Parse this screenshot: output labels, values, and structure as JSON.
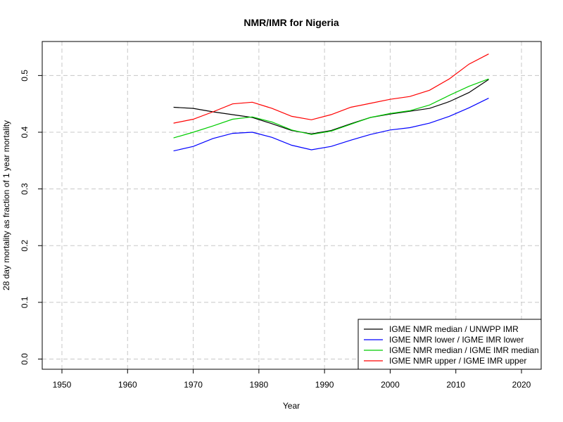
{
  "chart_data": {
    "type": "line",
    "title": "NMR/IMR for Nigeria",
    "xlabel": "Year",
    "ylabel": "28 day mortality as fraction of 1 year mortality",
    "xlim": [
      1947,
      2023
    ],
    "ylim": [
      -0.018,
      0.56
    ],
    "xticks": [
      1950,
      1960,
      1970,
      1980,
      1990,
      2000,
      2010,
      2020
    ],
    "yticks": [
      0.0,
      0.1,
      0.2,
      0.3,
      0.4,
      0.5
    ],
    "ytick_labels": [
      "0.0",
      "0.1",
      "0.2",
      "0.3",
      "0.4",
      "0.5"
    ],
    "grid": true,
    "legend_position": "bottom-right",
    "x": [
      1967,
      1970,
      1973,
      1976,
      1979,
      1982,
      1985,
      1988,
      1991,
      1994,
      1997,
      2000,
      2003,
      2006,
      2009,
      2012,
      2015
    ],
    "series": [
      {
        "name": "IGME NMR median / UNWPP IMR",
        "color": "#000000",
        "values": [
          0.444,
          0.442,
          0.436,
          0.431,
          0.426,
          0.415,
          0.403,
          0.397,
          0.403,
          0.415,
          0.426,
          0.432,
          0.437,
          0.442,
          0.454,
          0.47,
          0.493
        ]
      },
      {
        "name": "IGME NMR lower / IGME IMR lower",
        "color": "#0000ff",
        "values": [
          0.367,
          0.375,
          0.389,
          0.398,
          0.4,
          0.391,
          0.377,
          0.369,
          0.375,
          0.386,
          0.396,
          0.404,
          0.408,
          0.416,
          0.428,
          0.443,
          0.46
        ]
      },
      {
        "name": "IGME NMR median / IGME IMR median",
        "color": "#00cc00",
        "values": [
          0.39,
          0.4,
          0.411,
          0.423,
          0.427,
          0.418,
          0.404,
          0.396,
          0.402,
          0.414,
          0.426,
          0.433,
          0.438,
          0.448,
          0.465,
          0.481,
          0.494
        ]
      },
      {
        "name": "IGME NMR upper / IGME IMR upper",
        "color": "#ff0000",
        "values": [
          0.416,
          0.423,
          0.436,
          0.45,
          0.453,
          0.442,
          0.428,
          0.422,
          0.431,
          0.444,
          0.451,
          0.458,
          0.463,
          0.474,
          0.494,
          0.52,
          0.538
        ]
      }
    ]
  }
}
